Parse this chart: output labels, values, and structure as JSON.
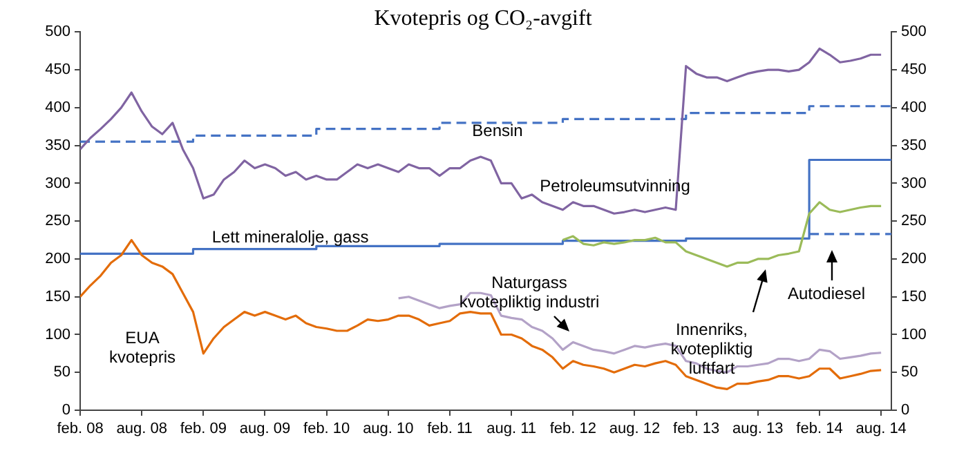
{
  "chart_data": {
    "type": "line",
    "title": "Kvotepris og CO₂-avgift",
    "x": [
      "2008-02",
      "2008-03",
      "2008-04",
      "2008-05",
      "2008-06",
      "2008-07",
      "2008-08",
      "2008-09",
      "2008-10",
      "2008-11",
      "2008-12",
      "2009-01",
      "2009-02",
      "2009-03",
      "2009-04",
      "2009-05",
      "2009-06",
      "2009-07",
      "2009-08",
      "2009-09",
      "2009-10",
      "2009-11",
      "2009-12",
      "2010-01",
      "2010-02",
      "2010-03",
      "2010-04",
      "2010-05",
      "2010-06",
      "2010-07",
      "2010-08",
      "2010-09",
      "2010-10",
      "2010-11",
      "2010-12",
      "2011-01",
      "2011-02",
      "2011-03",
      "2011-04",
      "2011-05",
      "2011-06",
      "2011-07",
      "2011-08",
      "2011-09",
      "2011-10",
      "2011-11",
      "2011-12",
      "2012-01",
      "2012-02",
      "2012-03",
      "2012-04",
      "2012-05",
      "2012-06",
      "2012-07",
      "2012-08",
      "2012-09",
      "2012-10",
      "2012-11",
      "2012-12",
      "2013-01",
      "2013-02",
      "2013-03",
      "2013-04",
      "2013-05",
      "2013-06",
      "2013-07",
      "2013-08",
      "2013-09",
      "2013-10",
      "2013-11",
      "2013-12",
      "2014-01",
      "2014-02",
      "2014-03",
      "2014-04",
      "2014-05",
      "2014-06",
      "2014-07",
      "2014-08"
    ],
    "series": [
      {
        "color": "#8064a2",
        "values": [
          345,
          360,
          372,
          385,
          400,
          420,
          395,
          375,
          365,
          380,
          345,
          320,
          280,
          285,
          305,
          315,
          330,
          320,
          325,
          320,
          310,
          315,
          305,
          310,
          305,
          305,
          315,
          325,
          320,
          325,
          320,
          315,
          325,
          320,
          320,
          310,
          320,
          320,
          330,
          335,
          330,
          300,
          300,
          280,
          285,
          275,
          270,
          265,
          275,
          270,
          270,
          265,
          260,
          262,
          265,
          262,
          265,
          268,
          265,
          455,
          445,
          440,
          440,
          435,
          440,
          445,
          448,
          450,
          450,
          448,
          450,
          460,
          478,
          470,
          460,
          462,
          465,
          470,
          470
        ]
      },
      {
        "color": "#e36c09",
        "values": [
          150,
          165,
          178,
          195,
          205,
          225,
          205,
          195,
          190,
          180,
          155,
          130,
          75,
          95,
          110,
          120,
          130,
          125,
          130,
          125,
          120,
          125,
          115,
          110,
          108,
          105,
          105,
          112,
          120,
          118,
          120,
          125,
          125,
          120,
          112,
          115,
          118,
          128,
          130,
          128,
          128,
          100,
          100,
          95,
          85,
          80,
          70,
          55,
          65,
          60,
          58,
          55,
          50,
          55,
          60,
          58,
          62,
          65,
          60,
          45,
          40,
          35,
          30,
          28,
          35,
          35,
          38,
          40,
          45,
          45,
          42,
          45,
          55,
          55,
          42,
          45,
          48,
          52,
          53
        ]
      },
      {
        "color": "#b3a2c7",
        "values": [
          null,
          null,
          null,
          null,
          null,
          null,
          null,
          null,
          null,
          null,
          null,
          null,
          null,
          null,
          null,
          null,
          null,
          null,
          null,
          null,
          null,
          null,
          null,
          null,
          null,
          null,
          null,
          null,
          null,
          null,
          null,
          148,
          150,
          145,
          140,
          135,
          138,
          140,
          155,
          155,
          152,
          125,
          122,
          120,
          110,
          105,
          95,
          80,
          90,
          85,
          80,
          78,
          75,
          80,
          85,
          83,
          86,
          88,
          85,
          65,
          62,
          55,
          52,
          50,
          58,
          58,
          60,
          62,
          68,
          68,
          65,
          68,
          80,
          78,
          68,
          70,
          72,
          75,
          76
        ]
      },
      {
        "color": "#9bbb59",
        "values": [
          null,
          null,
          null,
          null,
          null,
          null,
          null,
          null,
          null,
          null,
          null,
          null,
          null,
          null,
          null,
          null,
          null,
          null,
          null,
          null,
          null,
          null,
          null,
          null,
          null,
          null,
          null,
          null,
          null,
          null,
          null,
          null,
          null,
          null,
          null,
          null,
          null,
          null,
          null,
          null,
          null,
          null,
          null,
          null,
          null,
          null,
          null,
          225,
          230,
          220,
          218,
          222,
          220,
          222,
          225,
          225,
          228,
          222,
          222,
          210,
          205,
          200,
          195,
          190,
          195,
          195,
          200,
          200,
          205,
          207,
          210,
          260,
          275,
          265,
          262,
          265,
          268,
          270,
          270
        ]
      },
      {
        "type": "step",
        "color": "#4472c4",
        "line_style": "dashed",
        "x": [
          "2008-02",
          "2009-01",
          "2010-01",
          "2011-01",
          "2012-01",
          "2013-01",
          "2014-01",
          "2014-09"
        ],
        "values": [
          355,
          363,
          372,
          380,
          385,
          393,
          402,
          402
        ]
      },
      {
        "type": "step",
        "color": "#4472c4",
        "line_style": "solid",
        "x": [
          "2008-02",
          "2009-01",
          "2010-01",
          "2011-01",
          "2012-01",
          "2013-01",
          "2014-01",
          "2014-09"
        ],
        "values": [
          207,
          213,
          217,
          220,
          224,
          227,
          331,
          331
        ]
      },
      {
        "type": "step",
        "color": "#4472c4",
        "line_style": "dashed",
        "x": [
          "2014-01",
          "2014-09"
        ],
        "values": [
          233,
          233
        ]
      }
    ],
    "xlim": [
      "2008-02",
      "2014-09"
    ],
    "xticks": [
      {
        "value": "2008-02",
        "label": "feb. 08"
      },
      {
        "value": "2008-08",
        "label": "aug. 08"
      },
      {
        "value": "2009-02",
        "label": "feb. 09"
      },
      {
        "value": "2009-08",
        "label": "aug. 09"
      },
      {
        "value": "2010-02",
        "label": "feb. 10"
      },
      {
        "value": "2010-08",
        "label": "aug. 10"
      },
      {
        "value": "2011-02",
        "label": "feb. 11"
      },
      {
        "value": "2011-08",
        "label": "aug. 11"
      },
      {
        "value": "2012-02",
        "label": "feb. 12"
      },
      {
        "value": "2012-08",
        "label": "aug. 12"
      },
      {
        "value": "2013-02",
        "label": "feb. 13"
      },
      {
        "value": "2013-08",
        "label": "aug. 13"
      },
      {
        "value": "2014-02",
        "label": "feb. 14"
      },
      {
        "value": "2014-08",
        "label": "aug. 14"
      }
    ],
    "ylim": [
      0,
      500
    ],
    "yticks": [
      0,
      50,
      100,
      150,
      200,
      250,
      300,
      350,
      400,
      450,
      500
    ],
    "y2lim": [
      0,
      500
    ],
    "y2ticks": [
      0,
      50,
      100,
      150,
      200,
      250,
      300,
      350,
      400,
      450,
      500
    ],
    "grid": false,
    "legend": false,
    "marker": "none",
    "line_style": "solid",
    "annotations": [
      "Bensin",
      "Petroleumsutvinning",
      "Lett mineralolje, gass",
      "EUA\nkvotepris",
      "Naturgass\nkvotepliktig industri",
      "Innenriks,\nkvotepliktig\nluftfart",
      "Autodiesel"
    ]
  }
}
